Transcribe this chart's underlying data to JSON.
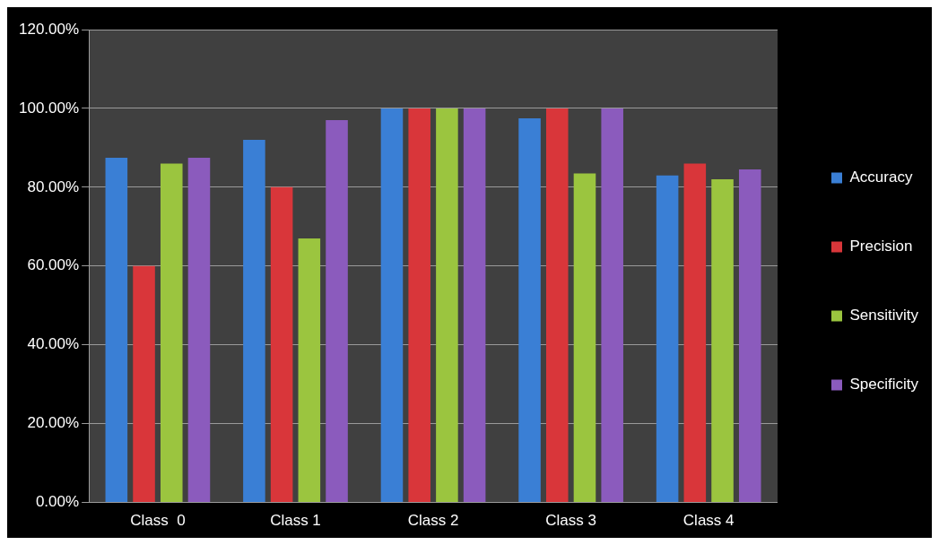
{
  "chart_data": {
    "type": "bar",
    "categories": [
      "Class  0",
      "Class 1",
      "Class 2",
      "Class 3",
      "Class 4"
    ],
    "series": [
      {
        "name": "Accuracy",
        "color": "#3a7fd5",
        "values": [
          87.5,
          92,
          100,
          97.5,
          83
        ]
      },
      {
        "name": "Precision",
        "color": "#d9363a",
        "values": [
          60,
          80,
          100,
          100,
          86
        ]
      },
      {
        "name": "Sensitivity",
        "color": "#9bc53f",
        "values": [
          86,
          67,
          100,
          83.5,
          82
        ]
      },
      {
        "name": "Specificity",
        "color": "#8b5bbd",
        "values": [
          87.5,
          97,
          100,
          100,
          84.5
        ]
      }
    ],
    "ylim": [
      0,
      120
    ],
    "yticks": [
      {
        "value": 0,
        "label": "0.00%"
      },
      {
        "value": 20,
        "label": "20.00%"
      },
      {
        "value": 40,
        "label": "40.00%"
      },
      {
        "value": 60,
        "label": "60.00%"
      },
      {
        "value": 80,
        "label": "80.00%"
      },
      {
        "value": 100,
        "label": "100.00%"
      },
      {
        "value": 120,
        "label": "120.00%"
      }
    ],
    "grid": "y",
    "legend": "right"
  }
}
